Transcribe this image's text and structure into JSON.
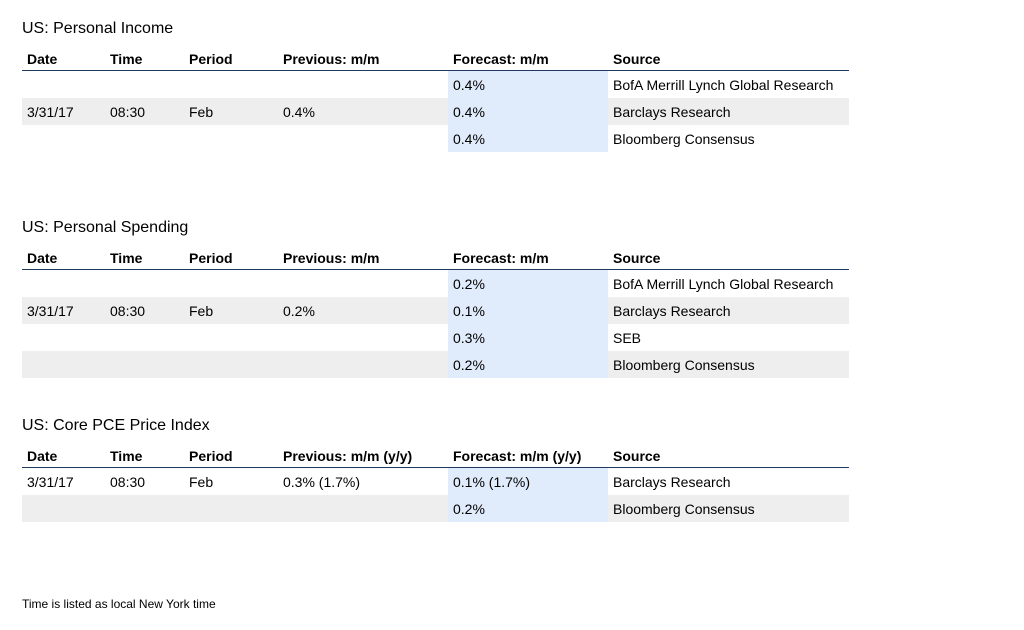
{
  "income": {
    "title": "US: Personal Income",
    "headers": {
      "date": "Date",
      "time": "Time",
      "period": "Period",
      "previous": "Previous: m/m",
      "forecast": "Forecast: m/m",
      "source": "Source"
    },
    "rows": [
      {
        "date": "",
        "time": "",
        "period": "",
        "previous": "",
        "forecast": "0.4%",
        "source": "BofA Merrill Lynch Global Research"
      },
      {
        "date": "3/31/17",
        "time": "08:30",
        "period": "Feb",
        "previous": "0.4%",
        "forecast": "0.4%",
        "source": "Barclays Research"
      },
      {
        "date": "",
        "time": "",
        "period": "",
        "previous": "",
        "forecast": "0.4%",
        "source": "Bloomberg Consensus"
      }
    ]
  },
  "spending": {
    "title": "US: Personal Spending",
    "headers": {
      "date": "Date",
      "time": "Time",
      "period": "Period",
      "previous": "Previous: m/m",
      "forecast": "Forecast: m/m",
      "source": "Source"
    },
    "rows": [
      {
        "date": "",
        "time": "",
        "period": "",
        "previous": "",
        "forecast": "0.2%",
        "source": "BofA Merrill Lynch Global Research"
      },
      {
        "date": "3/31/17",
        "time": "08:30",
        "period": "Feb",
        "previous": "0.2%",
        "forecast": "0.1%",
        "source": "Barclays Research"
      },
      {
        "date": "",
        "time": "",
        "period": "",
        "previous": "",
        "forecast": "0.3%",
        "source": "SEB"
      },
      {
        "date": "",
        "time": "",
        "period": "",
        "previous": "",
        "forecast": "0.2%",
        "source": "Bloomberg Consensus"
      }
    ]
  },
  "pce": {
    "title": "US: Core PCE Price Index",
    "headers": {
      "date": "Date",
      "time": "Time",
      "period": "Period",
      "previous": "Previous: m/m (y/y)",
      "forecast": "Forecast: m/m (y/y)",
      "source": "Source"
    },
    "rows": [
      {
        "date": "3/31/17",
        "time": "08:30",
        "period": "Feb",
        "previous": "0.3% (1.7%)",
        "forecast": "0.1% (1.7%)",
        "source": "Barclays Research"
      },
      {
        "date": "",
        "time": "",
        "period": "",
        "previous": "",
        "forecast": "0.2%",
        "source": "Bloomberg Consensus"
      }
    ]
  },
  "footer": "Time is listed as local New York time",
  "colors": {
    "forecast_highlight": "#e0ebfb",
    "row_shade": "#eeeeee",
    "header_rule": "#1f3a5f"
  }
}
